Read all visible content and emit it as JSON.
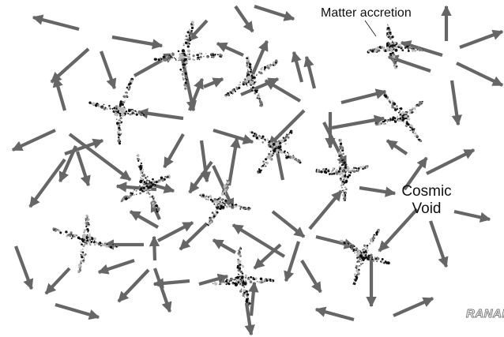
{
  "labels": {
    "matter_accretion": "Matter accretion",
    "cosmic": "Cosmic",
    "void": "Void",
    "credit": "RANAN"
  },
  "colors": {
    "arrow": "#666666",
    "particle_dark": "#111111",
    "particle_mid": "#777777",
    "particle_light": "#bbbbbb",
    "text": "#111111",
    "background": "#ffffff"
  }
}
